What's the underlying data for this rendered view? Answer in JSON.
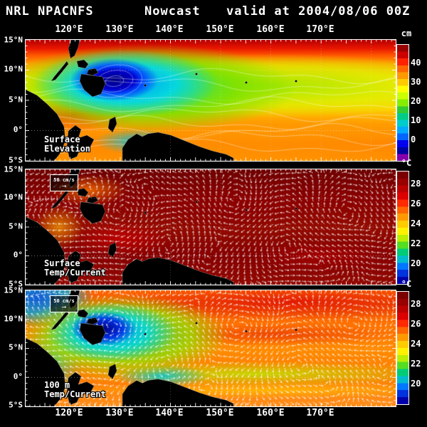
{
  "header": {
    "model": "NRL NPACNFS",
    "mode": "Nowcast",
    "valid": "valid at 2004/08/06 00Z"
  },
  "axes": {
    "lon_labels": [
      "120°E",
      "130°E",
      "140°E",
      "150°E",
      "160°E",
      "170°E"
    ],
    "lat_labels": [
      "15°N",
      "10°N",
      "5°N",
      "0°",
      "5°S"
    ]
  },
  "panels": [
    {
      "name": "Surface Elevation",
      "label_line1": "Surface",
      "label_line2": "Elevation",
      "colorbar": {
        "unit": "cm",
        "ticks": [
          "40",
          "30",
          "20",
          "10",
          "0"
        ]
      }
    },
    {
      "name": "Surface Temp/Current",
      "label_line1": "Surface",
      "label_line2": "Temp/Current",
      "vector_key": "50 cm/s",
      "colorbar": {
        "unit": "°C",
        "ticks": [
          "28",
          "26",
          "24",
          "22",
          "20"
        ]
      }
    },
    {
      "name": "100 m Temp/Current",
      "label_line1": "100 m",
      "label_line2": "Temp/Current",
      "vector_key": "50 cm/s",
      "colorbar": {
        "unit": "°C",
        "ticks": [
          "28",
          "26",
          "24",
          "22",
          "20"
        ]
      }
    }
  ],
  "colors": {
    "background": "#000000",
    "text": "#ffffff",
    "elevation_scale": [
      "#990000",
      "#cc0000",
      "#ff2200",
      "#ff6600",
      "#ff9900",
      "#ffcc00",
      "#ffff00",
      "#ccff00",
      "#88ee00",
      "#33cc33",
      "#00cc88",
      "#00cccc",
      "#00aaff",
      "#0066ff",
      "#0000ee",
      "#0000a0",
      "#8800aa"
    ],
    "temp_scale": [
      "#7a0000",
      "#990000",
      "#bb0000",
      "#dd0000",
      "#ff2a00",
      "#ff6600",
      "#ff9900",
      "#ffcc00",
      "#fff200",
      "#bbee00",
      "#55dd22",
      "#00cc77",
      "#00bbcc",
      "#0077ff",
      "#0033dd",
      "#0000aa"
    ]
  }
}
